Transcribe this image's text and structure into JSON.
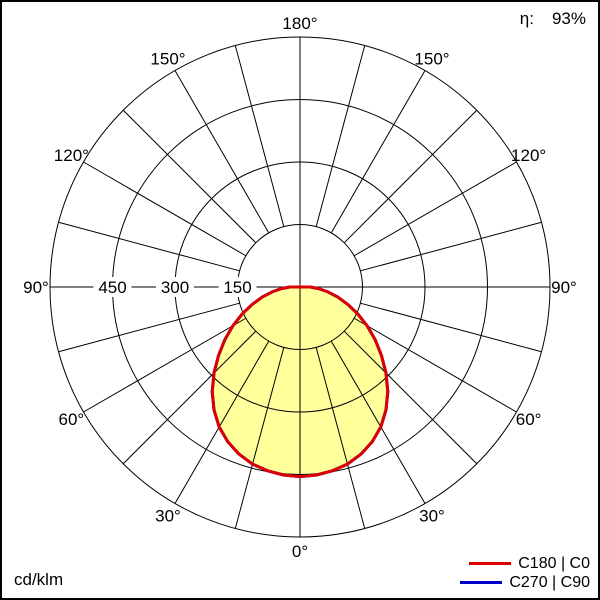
{
  "efficiency": {
    "label": "η:",
    "value": "93%"
  },
  "unit_label": "cd/klm",
  "legend": {
    "items": [
      {
        "label": "C180 | C0",
        "color": "#dd0000"
      },
      {
        "label": "C270 | C90",
        "color": "#0000c8"
      }
    ]
  },
  "chart_data": {
    "type": "polar",
    "subtype": "luminous-intensity-distribution",
    "unit": "cd/klm",
    "efficiency_eta": "93%",
    "grid": {
      "angle_step_deg": 15,
      "ring_values": [
        150,
        300,
        450,
        600
      ],
      "ring_labels": [
        "150",
        "300",
        "450"
      ],
      "rmax": 600
    },
    "angle_labels": [
      {
        "text": "0°",
        "gamma": 0
      },
      {
        "text": "30°",
        "gamma": 30
      },
      {
        "text": "60°",
        "gamma": 60
      },
      {
        "text": "90°",
        "gamma": 90
      },
      {
        "text": "120°",
        "gamma": 120
      },
      {
        "text": "150°",
        "gamma": 150
      },
      {
        "text": "180°",
        "gamma": 180
      }
    ],
    "series": [
      {
        "name": "C180 | C0",
        "color": "#dd0000",
        "fill": "#ffff9c",
        "symmetric": true,
        "gamma_deg": [
          0,
          5,
          10,
          15,
          20,
          25,
          30,
          35,
          40,
          45,
          50,
          55,
          60,
          65,
          70,
          75,
          80,
          85,
          90
        ],
        "values": [
          455,
          453,
          448,
          440,
          427,
          410,
          388,
          360,
          328,
          292,
          255,
          220,
          186,
          153,
          122,
          94,
          68,
          45,
          25
        ]
      },
      {
        "name": "C270 | C90",
        "color": "#0000c8",
        "fill": "none",
        "symmetric": true,
        "gamma_deg": [
          0,
          5,
          10,
          15,
          20,
          25,
          30,
          35,
          40,
          45,
          50,
          55,
          60,
          65,
          70,
          75,
          80,
          85,
          90
        ],
        "values": [
          455,
          453,
          448,
          440,
          427,
          410,
          388,
          360,
          328,
          292,
          255,
          220,
          186,
          153,
          122,
          94,
          68,
          45,
          25
        ]
      }
    ]
  }
}
